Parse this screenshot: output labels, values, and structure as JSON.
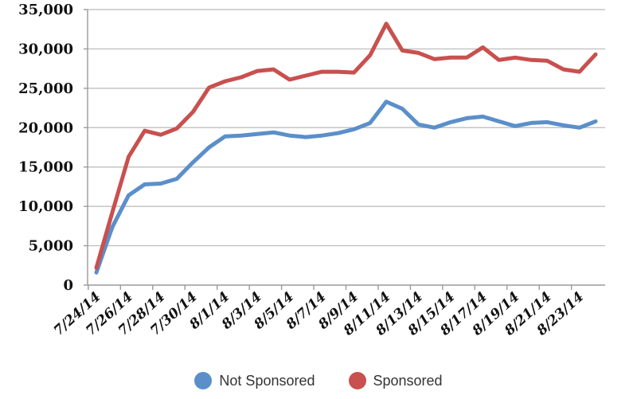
{
  "chart_data": {
    "type": "line",
    "title": "",
    "xlabel": "",
    "ylabel": "",
    "ylim": [
      0,
      35000
    ],
    "yticks": [
      "0",
      "5,000",
      "10,000",
      "15,000",
      "20,000",
      "25,000",
      "30,000",
      "35,000"
    ],
    "x": [
      "7/24/14",
      "7/25/14",
      "7/26/14",
      "7/27/14",
      "7/28/14",
      "7/29/14",
      "7/30/14",
      "7/31/14",
      "8/1/14",
      "8/2/14",
      "8/3/14",
      "8/4/14",
      "8/5/14",
      "8/6/14",
      "8/7/14",
      "8/8/14",
      "8/9/14",
      "8/10/14",
      "8/11/14",
      "8/12/14",
      "8/13/14",
      "8/14/14",
      "8/15/14",
      "8/16/14",
      "8/17/14",
      "8/18/14",
      "8/19/14",
      "8/20/14",
      "8/21/14",
      "8/22/14",
      "8/23/14",
      "8/24/14"
    ],
    "xtick_labels": [
      "7/24/14",
      "7/26/14",
      "7/28/14",
      "7/30/14",
      "8/1/14",
      "8/3/14",
      "8/5/14",
      "8/7/14",
      "8/9/14",
      "8/11/14",
      "8/13/14",
      "8/15/14",
      "8/17/14",
      "8/19/14",
      "8/21/14",
      "8/23/14"
    ],
    "grid": true,
    "legend_position": "bottom",
    "series": [
      {
        "name": "Not Sponsored",
        "color": "#5b8fc9",
        "values": [
          1600,
          7400,
          11400,
          12800,
          12900,
          13500,
          15600,
          17500,
          18900,
          19000,
          19200,
          19400,
          19000,
          18800,
          19000,
          19300,
          19800,
          20600,
          23300,
          22400,
          20400,
          20000,
          20700,
          21200,
          21400,
          20800,
          20200,
          20600,
          20700,
          20300,
          20000,
          20800
        ]
      },
      {
        "name": "Sponsored",
        "color": "#c8504e",
        "values": [
          2200,
          9300,
          16300,
          19600,
          19100,
          19900,
          22000,
          25100,
          25900,
          26400,
          27200,
          27400,
          26100,
          26600,
          27100,
          27100,
          27000,
          29200,
          33200,
          29800,
          29500,
          28700,
          28900,
          28900,
          30200,
          28600,
          28900,
          28600,
          28500,
          27400,
          27100,
          29300
        ]
      }
    ]
  }
}
